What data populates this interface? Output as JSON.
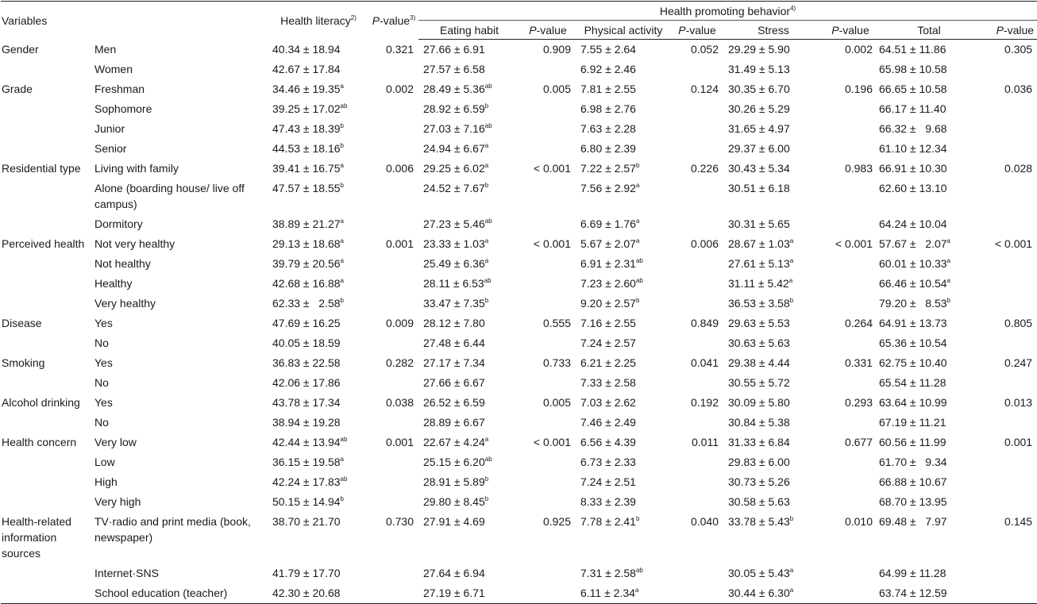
{
  "header": {
    "variables": "Variables",
    "health_literacy": "Health literacy",
    "health_literacy_note": "2)",
    "p_italic": "P",
    "p_suffix": "-value",
    "p_note": "3)",
    "hpb": "Health promoting behavior",
    "hpb_note": "4)",
    "eating": "Eating habit",
    "physical": "Physical activity",
    "stress": "Stress",
    "total": "Total"
  },
  "rows": [
    {
      "var": "Gender",
      "sub": "Men",
      "hl": "40.34 ± 18.94",
      "hl_sup": "",
      "p1": "0.321",
      "eat": "27.66 ± 6.91",
      "eat_sup": "",
      "p2": "0.909",
      "pa": "7.55 ± 2.64",
      "pa_sup": "",
      "p3": "0.052",
      "st": "29.29 ± 5.90",
      "st_sup": "",
      "p4": "0.002",
      "tot": "64.51 ± 11.86",
      "tot_sup": "",
      "p5": "0.305"
    },
    {
      "var": "",
      "sub": "Women",
      "hl": "42.67 ± 17.84",
      "hl_sup": "",
      "p1": "",
      "eat": "27.57 ± 6.58",
      "eat_sup": "",
      "p2": "",
      "pa": "6.92 ± 2.46",
      "pa_sup": "",
      "p3": "",
      "st": "31.49 ± 5.13",
      "st_sup": "",
      "p4": "",
      "tot": "65.98 ± 10.58",
      "tot_sup": "",
      "p5": ""
    },
    {
      "var": "Grade",
      "sub": "Freshman",
      "hl": "34.46 ± 19.35",
      "hl_sup": "a",
      "p1": "0.002",
      "eat": "28.49 ± 5.36",
      "eat_sup": "ab",
      "p2": "0.005",
      "pa": "7.81 ± 2.55",
      "pa_sup": "",
      "p3": "0.124",
      "st": "30.35 ± 6.70",
      "st_sup": "",
      "p4": "0.196",
      "tot": "66.65 ± 10.58",
      "tot_sup": "",
      "p5": "0.036"
    },
    {
      "var": "",
      "sub": "Sophomore",
      "hl": "39.25 ± 17.02",
      "hl_sup": "ab",
      "p1": "",
      "eat": "28.92 ± 6.59",
      "eat_sup": "b",
      "p2": "",
      "pa": "6.98 ± 2.76",
      "pa_sup": "",
      "p3": "",
      "st": "30.26 ± 5.29",
      "st_sup": "",
      "p4": "",
      "tot": "66.17 ± 11.40",
      "tot_sup": "",
      "p5": ""
    },
    {
      "var": "",
      "sub": "Junior",
      "hl": "47.43 ± 18.39",
      "hl_sup": "b",
      "p1": "",
      "eat": "27.03 ± 7.16",
      "eat_sup": "ab",
      "p2": "",
      "pa": "7.63 ± 2.28",
      "pa_sup": "",
      "p3": "",
      "st": "31.65 ± 4.97",
      "st_sup": "",
      "p4": "",
      "tot": "66.32 ±   9.68",
      "tot_sup": "",
      "p5": ""
    },
    {
      "var": "",
      "sub": "Senior",
      "hl": "44.53 ± 18.16",
      "hl_sup": "b",
      "p1": "",
      "eat": "24.94 ± 6.67",
      "eat_sup": "a",
      "p2": "",
      "pa": "6.80 ± 2.39",
      "pa_sup": "",
      "p3": "",
      "st": "29.37 ± 6.00",
      "st_sup": "",
      "p4": "",
      "tot": "61.10 ± 12.34",
      "tot_sup": "",
      "p5": ""
    },
    {
      "var": "Residential type",
      "sub": "Living with family",
      "hl": "39.41 ± 16.75",
      "hl_sup": "a",
      "p1": "0.006",
      "eat": "29.25 ± 6.02",
      "eat_sup": "a",
      "p2": "< 0.001",
      "pa": "7.22 ± 2.57",
      "pa_sup": "b",
      "p3": "0.226",
      "st": "30.43 ± 5.34",
      "st_sup": "",
      "p4": "0.983",
      "tot": "66.91 ± 10.30",
      "tot_sup": "",
      "p5": "0.028"
    },
    {
      "var": "",
      "sub": "Alone (boarding house/ live off campus)",
      "hl": "47.57 ± 18.55",
      "hl_sup": "b",
      "p1": "",
      "eat": "24.52 ± 7.67",
      "eat_sup": "b",
      "p2": "",
      "pa": "7.56 ± 2.92",
      "pa_sup": "a",
      "p3": "",
      "st": "30.51 ± 6.18",
      "st_sup": "",
      "p4": "",
      "tot": "62.60 ± 13.10",
      "tot_sup": "",
      "p5": ""
    },
    {
      "var": "",
      "sub": "Dormitory",
      "hl": "38.89 ± 21.27",
      "hl_sup": "a",
      "p1": "",
      "eat": "27.23 ± 5.46",
      "eat_sup": "ab",
      "p2": "",
      "pa": "6.69 ± 1.76",
      "pa_sup": "a",
      "p3": "",
      "st": "30.31 ± 5.65",
      "st_sup": "",
      "p4": "",
      "tot": "64.24 ± 10.04",
      "tot_sup": "",
      "p5": ""
    },
    {
      "var": "Perceived health",
      "sub": "Not very healthy",
      "hl": "29.13 ± 18.68",
      "hl_sup": "a",
      "p1": "0.001",
      "eat": "23.33 ± 1.03",
      "eat_sup": "a",
      "p2": "< 0.001",
      "pa": "5.67 ± 2.07",
      "pa_sup": "a",
      "p3": "0.006",
      "st": "28.67 ± 1.03",
      "st_sup": "a",
      "p4": "< 0.001",
      "tot": "57.67 ±   2.07",
      "tot_sup": "a",
      "p5": "< 0.001"
    },
    {
      "var": "",
      "sub": "Not healthy",
      "hl": "39.79 ± 20.56",
      "hl_sup": "a",
      "p1": "",
      "eat": "25.49 ± 6.36",
      "eat_sup": "a",
      "p2": "",
      "pa": "6.91 ± 2.31",
      "pa_sup": "ab",
      "p3": "",
      "st": "27.61 ± 5.13",
      "st_sup": "a",
      "p4": "",
      "tot": "60.01 ± 10.33",
      "tot_sup": "a",
      "p5": ""
    },
    {
      "var": "",
      "sub": "Healthy",
      "hl": "42.68 ± 16.88",
      "hl_sup": "a",
      "p1": "",
      "eat": "28.11 ± 6.53",
      "eat_sup": "ab",
      "p2": "",
      "pa": "7.23 ± 2.60",
      "pa_sup": "ab",
      "p3": "",
      "st": "31.11 ± 5.42",
      "st_sup": "a",
      "p4": "",
      "tot": "66.46 ± 10.54",
      "tot_sup": "a",
      "p5": ""
    },
    {
      "var": "",
      "sub": "Very healthy",
      "hl": "62.33 ±   2.58",
      "hl_sup": "b",
      "p1": "",
      "eat": "33.47 ± 7.35",
      "eat_sup": "b",
      "p2": "",
      "pa": "9.20 ± 2.57",
      "pa_sup": "b",
      "p3": "",
      "st": "36.53 ± 3.58",
      "st_sup": "b",
      "p4": "",
      "tot": "79.20 ±   8.53",
      "tot_sup": "b",
      "p5": ""
    },
    {
      "var": "Disease",
      "sub": "Yes",
      "hl": "47.69 ± 16.25",
      "hl_sup": "",
      "p1": "0.009",
      "eat": "28.12 ± 7.80",
      "eat_sup": "",
      "p2": "0.555",
      "pa": "7.16 ± 2.55",
      "pa_sup": "",
      "p3": "0.849",
      "st": "29.63 ± 5.53",
      "st_sup": "",
      "p4": "0.264",
      "tot": "64.91 ± 13.73",
      "tot_sup": "",
      "p5": "0.805"
    },
    {
      "var": "",
      "sub": "No",
      "hl": "40.05 ± 18.59",
      "hl_sup": "",
      "p1": "",
      "eat": "27.48 ± 6.44",
      "eat_sup": "",
      "p2": "",
      "pa": "7.24 ± 2.57",
      "pa_sup": "",
      "p3": "",
      "st": "30.63 ± 5.63",
      "st_sup": "",
      "p4": "",
      "tot": "65.36 ± 10.54",
      "tot_sup": "",
      "p5": ""
    },
    {
      "var": "Smoking",
      "sub": "Yes",
      "hl": "36.83 ± 22.58",
      "hl_sup": "",
      "p1": "0.282",
      "eat": "27.17 ± 7.34",
      "eat_sup": "",
      "p2": "0.733",
      "pa": "6.21 ± 2.25",
      "pa_sup": "",
      "p3": "0.041",
      "st": "29.38 ± 4.44",
      "st_sup": "",
      "p4": "0.331",
      "tot": "62.75 ± 10.40",
      "tot_sup": "",
      "p5": "0.247"
    },
    {
      "var": "",
      "sub": "No",
      "hl": "42.06 ± 17.86",
      "hl_sup": "",
      "p1": "",
      "eat": "27.66 ± 6.67",
      "eat_sup": "",
      "p2": "",
      "pa": "7.33 ± 2.58",
      "pa_sup": "",
      "p3": "",
      "st": "30.55 ± 5.72",
      "st_sup": "",
      "p4": "",
      "tot": "65.54 ± 11.28",
      "tot_sup": "",
      "p5": ""
    },
    {
      "var": "Alcohol drinking",
      "sub": "Yes",
      "hl": "43.78 ± 17.34",
      "hl_sup": "",
      "p1": "0.038",
      "eat": "26.52 ± 6.59",
      "eat_sup": "",
      "p2": "0.005",
      "pa": "7.03 ± 2.62",
      "pa_sup": "",
      "p3": "0.192",
      "st": "30.09 ± 5.80",
      "st_sup": "",
      "p4": "0.293",
      "tot": "63.64 ± 10.99",
      "tot_sup": "",
      "p5": "0.013"
    },
    {
      "var": "",
      "sub": "No",
      "hl": "38.94 ± 19.28",
      "hl_sup": "",
      "p1": "",
      "eat": "28.89 ± 6.67",
      "eat_sup": "",
      "p2": "",
      "pa": "7.46 ± 2.49",
      "pa_sup": "",
      "p3": "",
      "st": "30.84 ± 5.38",
      "st_sup": "",
      "p4": "",
      "tot": "67.19 ± 11.21",
      "tot_sup": "",
      "p5": ""
    },
    {
      "var": "Health concern",
      "sub": "Very low",
      "hl": "42.44 ± 13.94",
      "hl_sup": "ab",
      "p1": "0.001",
      "eat": "22.67 ± 4.24",
      "eat_sup": "a",
      "p2": "< 0.001",
      "pa": "6.56 ± 4.39",
      "pa_sup": "",
      "p3": "0.011",
      "st": "31.33 ± 6.84",
      "st_sup": "",
      "p4": "0.677",
      "tot": "60.56 ± 11.99",
      "tot_sup": "",
      "p5": "0.001"
    },
    {
      "var": "",
      "sub": "Low",
      "hl": "36.15 ± 19.58",
      "hl_sup": "a",
      "p1": "",
      "eat": "25.15 ± 6.20",
      "eat_sup": "ab",
      "p2": "",
      "pa": "6.73 ± 2.33",
      "pa_sup": "",
      "p3": "",
      "st": "29.83 ± 6.00",
      "st_sup": "",
      "p4": "",
      "tot": "61.70 ±   9.34",
      "tot_sup": "",
      "p5": ""
    },
    {
      "var": "",
      "sub": "High",
      "hl": "42.24 ± 17.83",
      "hl_sup": "ab",
      "p1": "",
      "eat": "28.91 ± 5.89",
      "eat_sup": "b",
      "p2": "",
      "pa": "7.24 ± 2.51",
      "pa_sup": "",
      "p3": "",
      "st": "30.73 ± 5.26",
      "st_sup": "",
      "p4": "",
      "tot": "66.88 ± 10.67",
      "tot_sup": "",
      "p5": ""
    },
    {
      "var": "",
      "sub": "Very high",
      "hl": "50.15 ± 14.94",
      "hl_sup": "b",
      "p1": "",
      "eat": "29.80 ± 8.45",
      "eat_sup": "b",
      "p2": "",
      "pa": "8.33 ± 2.39",
      "pa_sup": "",
      "p3": "",
      "st": "30.58 ± 5.63",
      "st_sup": "",
      "p4": "",
      "tot": "68.70 ± 13.95",
      "tot_sup": "",
      "p5": ""
    },
    {
      "var": "Health-related information sources",
      "sub": "TV·radio and print media (book, newspaper)",
      "hl": "38.70 ± 21.70",
      "hl_sup": "",
      "p1": "0.730",
      "eat": "27.91 ± 4.69",
      "eat_sup": "",
      "p2": "0.925",
      "pa": "7.78 ± 2.41",
      "pa_sup": "b",
      "p3": "0.040",
      "st": "33.78 ± 5.43",
      "st_sup": "b",
      "p4": "0.010",
      "tot": "69.48 ±   7.97",
      "tot_sup": "",
      "p5": "0.145"
    },
    {
      "var": "",
      "sub": "Internet·SNS",
      "hl": "41.79 ± 17.70",
      "hl_sup": "",
      "p1": "",
      "eat": "27.64 ± 6.94",
      "eat_sup": "",
      "p2": "",
      "pa": "7.31 ± 2.58",
      "pa_sup": "ab",
      "p3": "",
      "st": "30.05 ± 5.43",
      "st_sup": "a",
      "p4": "",
      "tot": "64.99 ± 11.28",
      "tot_sup": "",
      "p5": ""
    },
    {
      "var": "",
      "sub": "School education (teacher)",
      "hl": "42.30 ± 20.68",
      "hl_sup": "",
      "p1": "",
      "eat": "27.19 ± 6.71",
      "eat_sup": "",
      "p2": "",
      "pa": "6.11 ± 2.34",
      "pa_sup": "a",
      "p3": "",
      "st": "30.44 ± 6.30",
      "st_sup": "a",
      "p4": "",
      "tot": "63.74 ± 12.59",
      "tot_sup": "",
      "p5": ""
    }
  ]
}
